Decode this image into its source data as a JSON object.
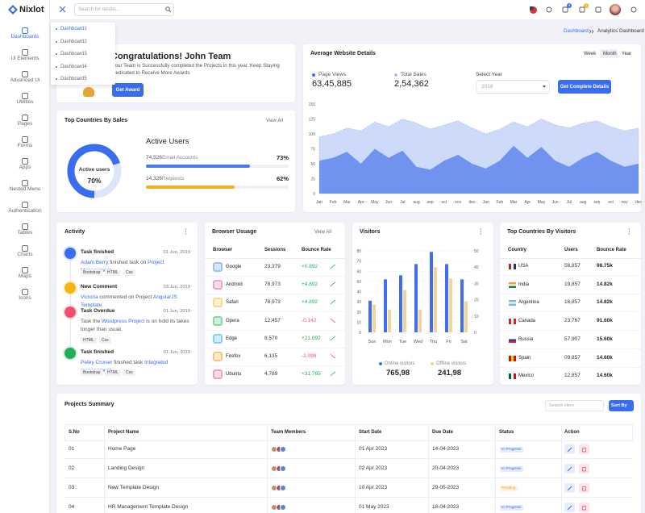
{
  "brand": "Nixlot",
  "search_placeholder": "Search for results...",
  "badges": [
    4,
    2
  ],
  "sidebar": [
    "Dashboards",
    "Ui Elements",
    "Advanced Ui",
    "Utilities",
    "Pages",
    "Forms",
    "Apps",
    "Nested Menu",
    "Authentication",
    "Tables",
    "Charts",
    "Maps",
    "Icons"
  ],
  "submenu": [
    "Dashboard1",
    "Dashboard2",
    "Dashboard3",
    "Dashboard4",
    "Dashboard5"
  ],
  "breadcrumb": [
    "Dashboard",
    "Analytics Dashboard"
  ],
  "welcome": {
    "title": "Congratulations! John Team",
    "text": "Your Team is Successfully completed the Projects in this year. Keep Staying Dedicated to Receive More Awards",
    "button": "Get Award"
  },
  "website": {
    "title": "Average Website Details",
    "tabs": [
      "Week",
      "Month",
      "Year"
    ],
    "stats": [
      {
        "label": "Page Views",
        "value": "63,45,885"
      },
      {
        "label": "Total Sales",
        "value": "2,54,362"
      }
    ],
    "select_label": "Select Year",
    "select_value": "2018",
    "button": "Get Complete Details",
    "chart": {
      "type": "area",
      "categories": [
        "Jan",
        "Feb",
        "Mar",
        "Apr",
        "May",
        "Jun",
        "Jul",
        "aug",
        "sep",
        "oct",
        "nov",
        "dec",
        "Jan",
        "Feb",
        "Mar",
        "Apr",
        "May",
        "Jun",
        "Jul",
        "aug",
        "sep",
        "oct",
        "nov",
        "dec"
      ],
      "series": [
        {
          "color": "#c9d6f8",
          "values": [
            95,
            100,
            110,
            105,
            120,
            112,
            125,
            118,
            108,
            115,
            122,
            110,
            100,
            108,
            120,
            112,
            125,
            115,
            110,
            118,
            122,
            112,
            105,
            110
          ]
        },
        {
          "color": "#5f86ee",
          "values": [
            55,
            60,
            70,
            50,
            75,
            60,
            72,
            45,
            40,
            55,
            65,
            50,
            42,
            55,
            80,
            60,
            78,
            55,
            45,
            60,
            70,
            55,
            45,
            50
          ]
        }
      ],
      "ylim": [
        0,
        150
      ],
      "yticks": [
        0,
        25,
        50,
        75,
        100,
        125,
        150
      ]
    }
  },
  "sales": {
    "title": "Top Countries By Sales",
    "view_all": "View All",
    "donut": {
      "label": "Active users",
      "value": 70,
      "value_label": "70%"
    },
    "heading": "Active Users",
    "rows": [
      {
        "count": "74,526",
        "label": "Email Accounts",
        "value": 73,
        "value_label": "73%",
        "color": "#4a78ea"
      },
      {
        "count": "14,326",
        "label": "Requests",
        "value": 62,
        "value_label": "62%",
        "color": "#f0b21c"
      }
    ]
  },
  "activity": {
    "title": "Activity",
    "items": [
      {
        "title": "Task finished",
        "date": "01 Jun, 2019",
        "color": "#3a6cf0",
        "parts": [
          {
            "t": "Adam Berry",
            "link": true
          },
          {
            "t": " finished task on ",
            "link": false
          },
          {
            "t": "Project Management",
            "link": true
          }
        ],
        "tags": [
          "Bootstrap",
          "HTML",
          "Css"
        ]
      },
      {
        "title": "New Comment",
        "date": "03 Jun, 2019",
        "color": "#f5b614",
        "parts": [
          {
            "t": "Victoria",
            "link": true
          },
          {
            "t": " commented on Project ",
            "link": false
          },
          {
            "t": "AngularJS Template",
            "link": true
          }
        ],
        "tags": []
      },
      {
        "title": "Task Overdue",
        "date": "01 Jun, 2019",
        "color": "#f0506e",
        "parts": [
          {
            "t": "Task the ",
            "link": false
          },
          {
            "t": "Wordpress Project",
            "link": true
          },
          {
            "t": " is on hold its takes longer than usual.",
            "link": false
          }
        ],
        "tags": [
          "HTML",
          "Css"
        ]
      },
      {
        "title": "Task finished",
        "date": "01 Jun, 2019",
        "color": "#20b05a",
        "parts": [
          {
            "t": "Petey Cruiser",
            "link": true
          },
          {
            "t": " finished task ",
            "link": false
          },
          {
            "t": "Integrated management",
            "link": true
          }
        ],
        "tags": [
          "Bootstrap",
          "HTML",
          "Css"
        ]
      }
    ]
  },
  "browser": {
    "title": "Browser Usuage",
    "view_all": "View All",
    "headers": [
      "Browser",
      "Sessions",
      "Bounce Rate"
    ],
    "rows": [
      [
        "Google",
        "23,379",
        "+0.892"
      ],
      [
        "Android",
        "78,973",
        "+4.892"
      ],
      [
        "Safari",
        "78,973",
        "+4.892"
      ],
      [
        "Opera",
        "12,457",
        "-0.142"
      ],
      [
        "Edge",
        "8,570",
        "+21.092"
      ],
      [
        "Firefox",
        "6,135",
        "-2.098"
      ],
      [
        "Ubuntu",
        "4,789",
        "+31.765"
      ]
    ]
  },
  "visitors": {
    "title": "Visitors",
    "chart": {
      "type": "bar",
      "categories": [
        "Sun",
        "Mon",
        "Tue",
        "Wed",
        "Thu",
        "Fri",
        "Sat"
      ],
      "series": [
        {
          "name": "Online visitors",
          "color": "#3f6ef0",
          "values": [
            31,
            52,
            56,
            67,
            79,
            67,
            52
          ]
        },
        {
          "name": "Offline visitors",
          "color": "#f1d49c",
          "values": [
            17,
            14,
            26,
            14,
            40,
            33,
            19
          ],
          "axis": "y2"
        }
      ],
      "ylim": [
        0,
        80
      ],
      "yticks": [
        0,
        10,
        20,
        30,
        40,
        50,
        60,
        70,
        80
      ],
      "y2lim": [
        0,
        50
      ],
      "y2ticks": [
        0,
        10,
        20,
        30,
        40,
        50
      ],
      "grid": true
    },
    "totals": [
      "765,98",
      "241,98"
    ]
  },
  "countries": {
    "title": "Top Countries By Visitors",
    "headers": [
      "Country",
      "Users",
      "Bounce Rate"
    ],
    "rows": [
      [
        "USA",
        "56,857",
        "98.75k"
      ],
      [
        "India",
        "19,857",
        "14.82k"
      ],
      [
        "Argentina",
        "16,857",
        "14.82k"
      ],
      [
        "Canada",
        "23,767",
        "91.60k"
      ],
      [
        "Russia",
        "57,907",
        "15.60k"
      ],
      [
        "Spain",
        "09,857",
        "14.60k"
      ],
      [
        "Mexico",
        "12,857",
        "14.60k"
      ]
    ]
  },
  "projects": {
    "title": "Projects Summary",
    "search": "Search Here",
    "sort": "Sort By",
    "headers": [
      "S.No",
      "Project Name",
      "Team Members",
      "Start Date",
      "Due Date",
      "Status",
      "Action"
    ],
    "rows": [
      {
        "no": "01",
        "name": "Home Page",
        "start": "01 Apr 2023",
        "due": "14-04-2023",
        "status": "In Progress",
        "status_color": "#3a6cf0"
      },
      {
        "no": "02",
        "name": "Landing Design",
        "start": "02 Apr 2023",
        "due": "20-04-2023",
        "status": "In Progress",
        "status_color": "#3a6cf0"
      },
      {
        "no": "03",
        "name": "New Template Design",
        "start": "10 Apr 2023",
        "due": "29-05-2023",
        "status": "Pending",
        "status_color": "#f5a014"
      },
      {
        "no": "04",
        "name": "HR Management Template Design",
        "start": "01 May 2023",
        "due": "18-04-2023",
        "status": "In Progress",
        "status_color": "#3a6cf0"
      }
    ]
  }
}
